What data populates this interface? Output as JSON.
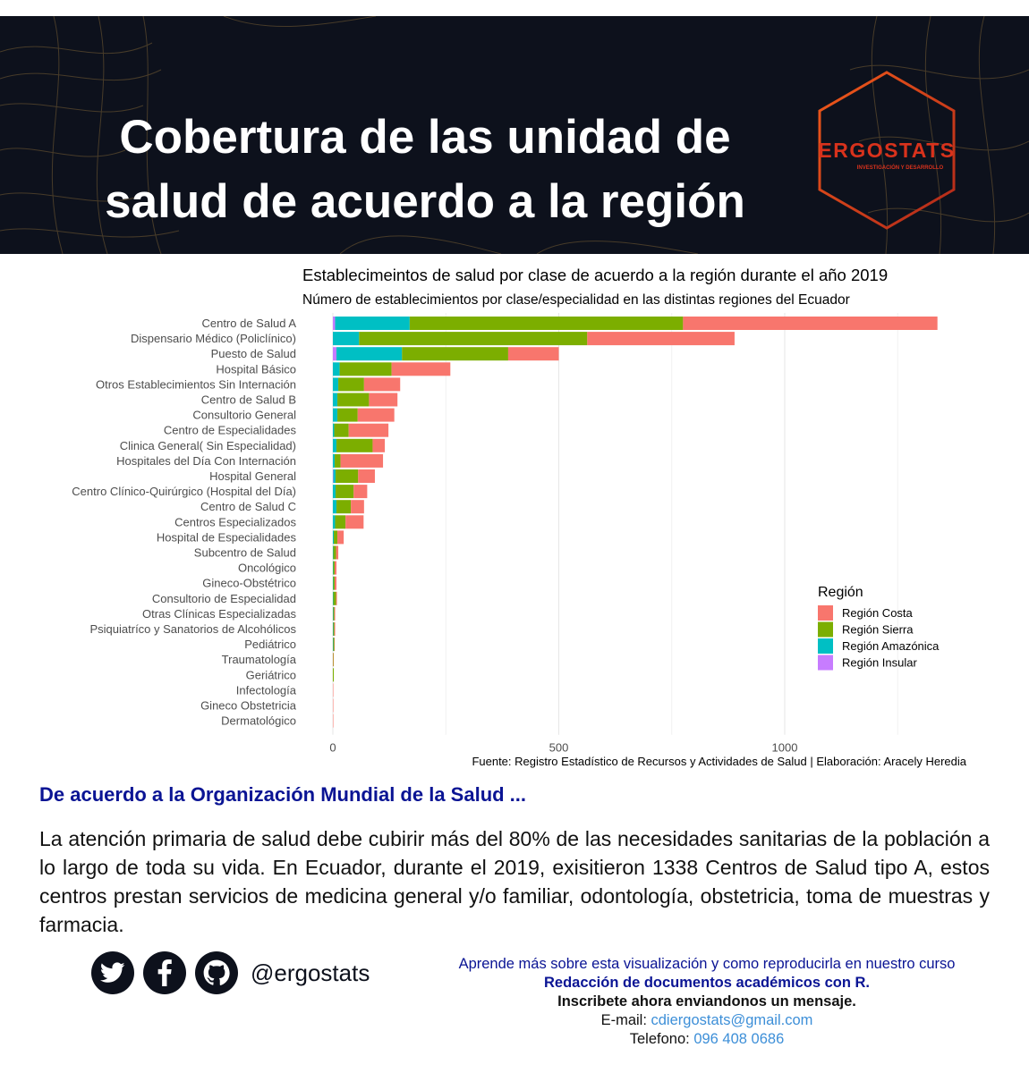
{
  "header": {
    "headline_line1": "Cobertura de las unidad de",
    "headline_line2": "salud de acuerdo a la región",
    "logo_text": "ERGOSTATS",
    "logo_subtext": "INVESTIGACIÓN Y DESARROLLO"
  },
  "chart_data": {
    "type": "bar",
    "orientation": "horizontal",
    "stacked": true,
    "title": "Establecimeintos de salud por clase de acuerdo a la región durante el año 2019",
    "subtitle": "Número de establecimientos por clase/especialidad en las distintas regiones del Ecuador",
    "caption": "Fuente:  Registro Estadístico de Recursos y Actividades de Salud | Elaboración: Aracely Heredia",
    "xlim": [
      0,
      1400
    ],
    "x_ticks": [
      0,
      500,
      1000
    ],
    "grid": true,
    "legend_title": "Región",
    "legend_position": "right",
    "categories": [
      "Centro de Salud A",
      "Dispensario Médico (Policlínico)",
      "Puesto de Salud",
      "Hospital Básico",
      "Otros Establecimientos Sin Internación",
      "Centro de Salud B",
      "Consultorio General",
      "Centro de Especialidades",
      "Clinica General( Sin Especialidad)",
      "Hospitales del Día Con Internación",
      "Hospital General",
      "Centro Clínico-Quirúrgico (Hospital del Día)",
      "Centro de Salud C",
      "Centros Especializados",
      "Hospital de Especialidades",
      "Subcentro de Salud",
      "Oncológico",
      "Gineco-Obstétrico",
      "Consultorio de Especialidad",
      "Otras Clínicas Especializadas",
      "Psiquiatríco y Sanatorios de Alcohólicos",
      "Pediátrico",
      "Traumatología",
      "Geriátrico",
      "Infectología",
      "Gineco Obstetricia",
      "Dermatológico"
    ],
    "series": [
      {
        "name": "Región Insular",
        "color": "#c77cff",
        "values": [
          5,
          0,
          8,
          0,
          0,
          0,
          0,
          0,
          0,
          0,
          1,
          0,
          0,
          0,
          0,
          0,
          0,
          0,
          0,
          0,
          0,
          0,
          0,
          0,
          0,
          0,
          0
        ]
      },
      {
        "name": "Región Amazónica",
        "color": "#00bfc4",
        "values": [
          165,
          58,
          145,
          15,
          12,
          10,
          10,
          3,
          8,
          4,
          5,
          6,
          8,
          5,
          2,
          1,
          1,
          1,
          1,
          1,
          1,
          1,
          0,
          0,
          0,
          0,
          0
        ]
      },
      {
        "name": "Región Sierra",
        "color": "#7cae00",
        "values": [
          605,
          505,
          235,
          115,
          57,
          70,
          45,
          32,
          80,
          13,
          50,
          40,
          32,
          23,
          8,
          6,
          3,
          3,
          6,
          2,
          2,
          2,
          1,
          2,
          0,
          0,
          0
        ]
      },
      {
        "name": "Región Costa",
        "color": "#f8766d",
        "values": [
          563,
          326,
          112,
          130,
          80,
          63,
          81,
          88,
          27,
          94,
          37,
          30,
          29,
          40,
          14,
          5,
          4,
          4,
          2,
          2,
          2,
          1,
          1,
          0,
          1,
          1,
          1
        ]
      }
    ],
    "legend_order": [
      "Región Costa",
      "Región Sierra",
      "Región Amazónica",
      "Región Insular"
    ]
  },
  "text": {
    "heading": "De acuerdo a la Organización Mundial de la Salud ...",
    "paragraph": "La atención primaria de salud debe cubirir más del 80% de las necesidades sanitarias de la población a lo largo de toda su vida. En Ecuador, durante el 2019, exisitieron 1338 Centros de Salud tipo A, estos centros prestan servicios de medicina general y/o familiar, odontología, obstetricia, toma de muestras y farmacia."
  },
  "footer": {
    "icons": [
      "twitter-icon",
      "facebook-icon",
      "github-icon"
    ],
    "handle": "@ergostats",
    "promo_line1": "Aprende más sobre esta visualización y como reproducirla en nuestro curso",
    "promo_line2": "Redacción de documentos académicos con R.",
    "promo_line3": "Inscribete ahora enviandonos un mensaje.",
    "email_label": "E-mail: ",
    "email": "cdiergostats@gmail.com",
    "phone_label": "Telefono: ",
    "phone": "096 408 0686"
  }
}
